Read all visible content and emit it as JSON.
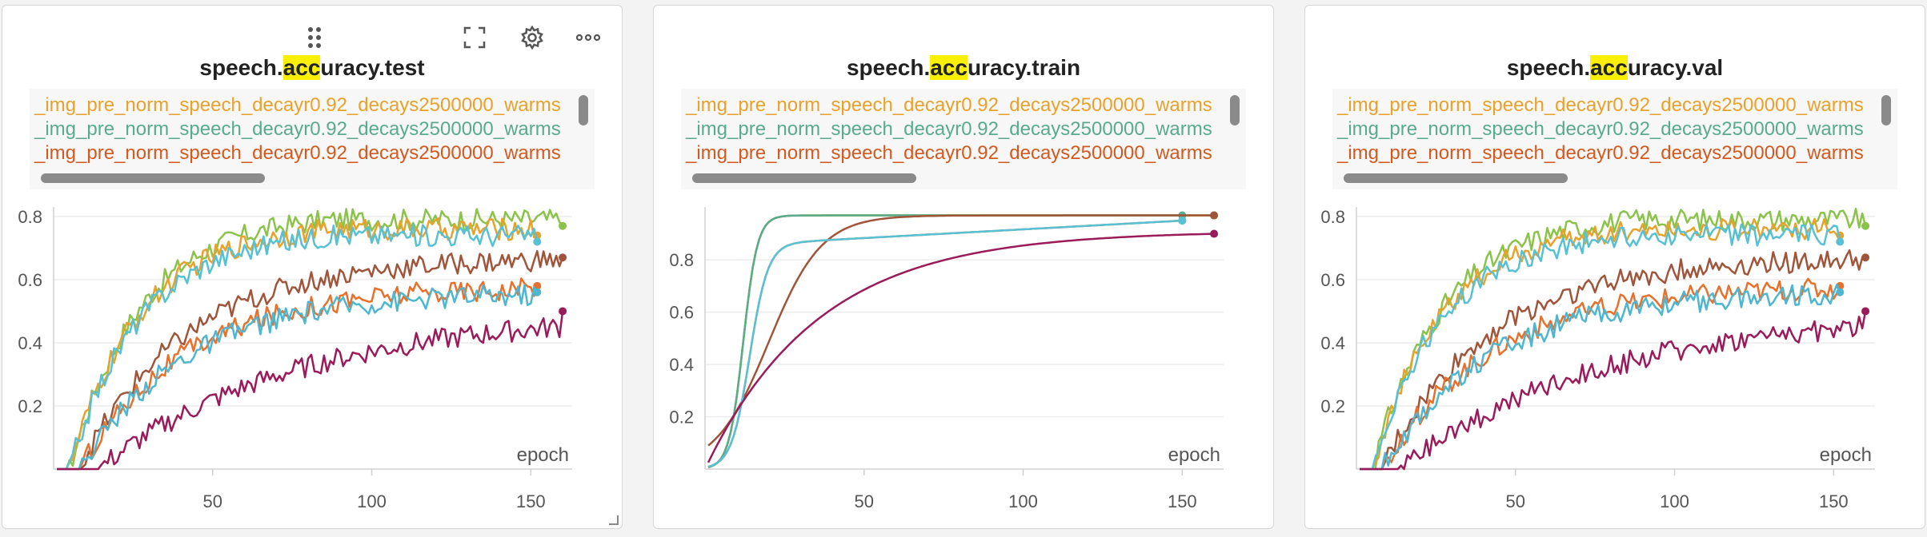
{
  "panels": [
    {
      "title_pre": "speech.",
      "title_hl": "acc",
      "title_post": "uracy.test"
    },
    {
      "title_pre": "speech.",
      "title_hl": "acc",
      "title_post": "uracy.train"
    },
    {
      "title_pre": "speech.",
      "title_hl": "acc",
      "title_post": "uracy.val"
    }
  ],
  "legend_runs": [
    {
      "label": "_img_pre_norm_speech_decayr0.92_decays2500000_warms",
      "color": "#e8a22c"
    },
    {
      "label": "_img_pre_norm_speech_decayr0.92_decays2500000_warms",
      "color": "#5aaa8f"
    },
    {
      "label": "_img_pre_norm_speech_decayr0.92_decays2500000_warms",
      "color": "#d2591f"
    }
  ],
  "icons": {
    "drag": "drag-handle-icon",
    "fullscreen": "fullscreen-icon",
    "settings": "gear-icon",
    "more": "more-options-icon"
  },
  "chart_data": [
    {
      "type": "line",
      "xlabel": "epoch",
      "xticks": [
        50,
        100,
        150
      ],
      "yticks": [
        0.2,
        0.4,
        0.6,
        0.8
      ],
      "xlim": [
        0,
        163
      ],
      "ylim": [
        0,
        0.82
      ],
      "series": [
        {
          "color": "#8bc34a",
          "final": 0.77,
          "end": 160,
          "kind": "noisy"
        },
        {
          "color": "#e8a22c",
          "final": 0.74,
          "end": 152,
          "kind": "noisy"
        },
        {
          "color": "#56c1d4",
          "final": 0.72,
          "end": 152,
          "kind": "noisy"
        },
        {
          "color": "#a0553a",
          "final": 0.67,
          "end": 160,
          "kind": "noisy"
        },
        {
          "color": "#e8702a",
          "final": 0.58,
          "end": 152,
          "kind": "noisy"
        },
        {
          "color": "#4db6d0",
          "final": 0.56,
          "end": 152,
          "kind": "noisy"
        },
        {
          "color": "#9b1b5a",
          "final": 0.5,
          "end": 160,
          "kind": "noisy"
        }
      ]
    },
    {
      "type": "line",
      "xlabel": "epoch",
      "xticks": [
        50,
        100,
        150
      ],
      "yticks": [
        0.2,
        0.4,
        0.6,
        0.8
      ],
      "xlim": [
        0,
        163
      ],
      "ylim": [
        0,
        0.99
      ],
      "series": [
        {
          "color": "#e8a22c",
          "final": 0.97,
          "end": 160,
          "kind": "smooth"
        },
        {
          "color": "#8bc34a",
          "final": 0.97,
          "end": 160,
          "kind": "smooth"
        },
        {
          "color": "#5aaa8f",
          "final": 0.97,
          "end": 150,
          "kind": "smooth"
        },
        {
          "color": "#a0553a",
          "final": 0.97,
          "end": 160,
          "kind": "smooth"
        },
        {
          "color": "#e8702a",
          "final": 0.95,
          "end": 150,
          "kind": "smooth"
        },
        {
          "color": "#56c1d4",
          "final": 0.95,
          "end": 150,
          "kind": "smooth"
        },
        {
          "color": "#9b1b5a",
          "final": 0.91,
          "end": 160,
          "kind": "smooth"
        }
      ]
    },
    {
      "type": "line",
      "xlabel": "epoch",
      "xticks": [
        50,
        100,
        150
      ],
      "yticks": [
        0.2,
        0.4,
        0.6,
        0.8
      ],
      "xlim": [
        0,
        163
      ],
      "ylim": [
        0,
        0.82
      ],
      "series": [
        {
          "color": "#8bc34a",
          "final": 0.77,
          "end": 160,
          "kind": "noisy"
        },
        {
          "color": "#e8a22c",
          "final": 0.74,
          "end": 152,
          "kind": "noisy"
        },
        {
          "color": "#56c1d4",
          "final": 0.72,
          "end": 152,
          "kind": "noisy"
        },
        {
          "color": "#a0553a",
          "final": 0.67,
          "end": 160,
          "kind": "noisy"
        },
        {
          "color": "#e8702a",
          "final": 0.58,
          "end": 152,
          "kind": "noisy"
        },
        {
          "color": "#4db6d0",
          "final": 0.56,
          "end": 152,
          "kind": "noisy"
        },
        {
          "color": "#9b1b5a",
          "final": 0.5,
          "end": 160,
          "kind": "noisy"
        }
      ]
    }
  ]
}
